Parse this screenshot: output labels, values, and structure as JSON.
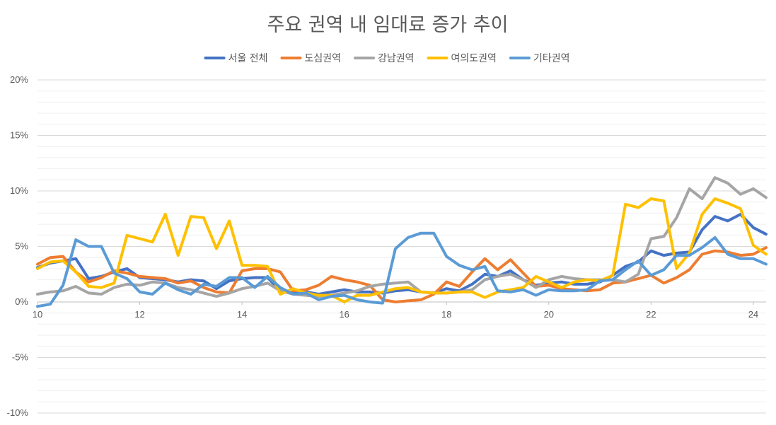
{
  "chart_data": {
    "type": "line",
    "title": "주요 권역 내 임대료 증가 추이",
    "xlabel": "",
    "ylabel": "",
    "xlim": [
      10,
      24.25
    ],
    "ylim": [
      -10,
      20
    ],
    "x_ticks": [
      10,
      12,
      14,
      16,
      18,
      20,
      22,
      24
    ],
    "x_tick_labels": [
      "10",
      "12",
      "14",
      "16",
      "18",
      "20",
      "22",
      "24"
    ],
    "y_ticks": [
      -10,
      -5,
      0,
      5,
      10,
      15,
      20
    ],
    "y_tick_labels": [
      "-10%",
      "-5%",
      "0%",
      "5%",
      "10%",
      "15%",
      "20%"
    ],
    "grid": true,
    "legend_position": "top",
    "x": [
      10,
      10.25,
      10.5,
      10.75,
      11,
      11.25,
      11.5,
      11.75,
      12,
      12.25,
      12.5,
      12.75,
      13,
      13.25,
      13.5,
      13.75,
      14,
      14.25,
      14.5,
      14.75,
      15,
      15.25,
      15.5,
      15.75,
      16,
      16.25,
      16.5,
      16.75,
      17,
      17.25,
      17.5,
      17.75,
      18,
      18.25,
      18.5,
      18.75,
      19,
      19.25,
      19.5,
      19.75,
      20,
      20.25,
      20.5,
      20.75,
      21,
      21.25,
      21.5,
      21.75,
      22,
      22.25,
      22.5,
      22.75,
      23,
      23.25,
      23.5,
      23.75,
      24,
      24.25
    ],
    "series": [
      {
        "name": "서울 전체",
        "color": "#4472c4",
        "values": [
          3.1,
          3.5,
          3.7,
          3.9,
          2.1,
          2.3,
          2.7,
          3.0,
          2.2,
          2.1,
          2.0,
          1.8,
          2.0,
          1.9,
          1.2,
          1.9,
          2.1,
          2.2,
          2.2,
          1.0,
          0.8,
          0.9,
          0.7,
          0.9,
          1.1,
          0.9,
          0.9,
          0.8,
          1.0,
          1.1,
          0.9,
          0.8,
          1.2,
          1.0,
          1.6,
          2.5,
          2.3,
          2.8,
          2.0,
          1.5,
          1.7,
          1.8,
          1.6,
          1.6,
          1.8,
          2.4,
          3.2,
          3.6,
          4.6,
          4.2,
          4.4,
          4.5,
          6.5,
          7.7,
          7.3,
          7.9,
          6.7,
          6.1
        ]
      },
      {
        "name": "도심권역",
        "color": "#ed7d31",
        "values": [
          3.4,
          4.0,
          4.1,
          2.7,
          1.8,
          2.2,
          2.8,
          2.6,
          2.3,
          2.2,
          2.1,
          1.7,
          1.9,
          1.3,
          0.9,
          0.8,
          2.8,
          3.0,
          3.0,
          2.7,
          1.0,
          1.1,
          1.5,
          2.3,
          2.0,
          1.8,
          1.5,
          0.2,
          0.0,
          0.1,
          0.2,
          0.7,
          1.8,
          1.4,
          2.7,
          3.9,
          2.9,
          3.8,
          2.6,
          1.4,
          1.5,
          1.2,
          1.1,
          1.0,
          1.1,
          1.7,
          1.8,
          2.1,
          2.4,
          1.7,
          2.2,
          2.9,
          4.3,
          4.6,
          4.5,
          4.2,
          4.3,
          4.9
        ]
      },
      {
        "name": "강남권역",
        "color": "#a5a5a5",
        "values": [
          0.7,
          0.9,
          1.0,
          1.4,
          0.8,
          0.7,
          1.3,
          1.6,
          1.5,
          1.8,
          1.7,
          1.3,
          1.1,
          0.8,
          0.5,
          0.8,
          1.2,
          1.4,
          1.7,
          1.0,
          0.7,
          0.6,
          0.5,
          0.6,
          0.8,
          1.0,
          1.4,
          1.6,
          1.7,
          1.8,
          0.9,
          0.8,
          0.8,
          0.9,
          1.1,
          2.0,
          2.3,
          2.5,
          2.0,
          1.3,
          2.0,
          2.3,
          2.1,
          2.0,
          2.0,
          2.0,
          1.8,
          2.5,
          5.7,
          5.9,
          7.6,
          10.2,
          9.3,
          11.2,
          10.7,
          9.7,
          10.2,
          9.4
        ]
      },
      {
        "name": "여의도권역",
        "color": "#ffc000",
        "values": [
          3.0,
          3.6,
          3.7,
          2.7,
          1.4,
          1.3,
          1.7,
          6.0,
          5.7,
          5.4,
          7.9,
          4.2,
          7.7,
          7.6,
          4.8,
          7.3,
          3.3,
          3.3,
          3.2,
          0.7,
          1.2,
          0.8,
          0.6,
          0.6,
          0.0,
          0.6,
          0.6,
          0.9,
          1.2,
          1.3,
          0.9,
          0.8,
          0.8,
          0.9,
          0.9,
          0.4,
          0.9,
          1.1,
          1.3,
          2.3,
          1.8,
          1.3,
          1.8,
          2.0,
          1.9,
          2.4,
          8.8,
          8.5,
          9.3,
          9.1,
          3.0,
          4.4,
          7.9,
          9.3,
          8.9,
          8.4,
          5.1,
          4.3
        ]
      },
      {
        "name": "기타권역",
        "color": "#5b9bd5",
        "values": [
          -0.4,
          -0.2,
          1.5,
          5.6,
          5.0,
          5.0,
          2.6,
          2.1,
          0.9,
          0.7,
          1.7,
          1.1,
          0.7,
          1.6,
          1.4,
          2.2,
          2.2,
          1.3,
          2.3,
          1.3,
          0.7,
          0.8,
          0.2,
          0.5,
          0.6,
          0.2,
          0.0,
          -0.1,
          4.8,
          5.8,
          6.2,
          6.2,
          4.1,
          3.3,
          2.9,
          3.2,
          1.0,
          0.9,
          1.1,
          0.6,
          1.1,
          1.0,
          1.0,
          1.1,
          1.9,
          2.0,
          2.9,
          3.7,
          2.4,
          2.9,
          4.2,
          4.2,
          4.9,
          5.8,
          4.3,
          3.9,
          3.9,
          3.4
        ]
      }
    ]
  }
}
